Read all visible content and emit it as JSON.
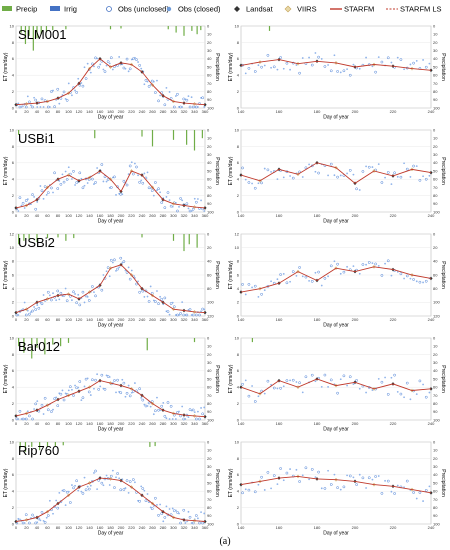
{
  "figure_label": "(a)",
  "legend": [
    {
      "label": "Precip",
      "kind": "bar",
      "color": "#70ad47"
    },
    {
      "label": "Irrig",
      "kind": "bar",
      "color": "#4472c4"
    },
    {
      "label": "Obs (unclosed)",
      "kind": "open-circle",
      "color": "#4472c4"
    },
    {
      "label": "Obs (closed)",
      "kind": "dot",
      "color": "#6f9bd8"
    },
    {
      "label": "Landsat",
      "kind": "diamond",
      "color": "#333333"
    },
    {
      "label": "VIIRS",
      "kind": "diamond-light",
      "color": "#c5a45a"
    },
    {
      "label": "STARFM",
      "kind": "line",
      "color": "#c0392b"
    },
    {
      "label": "STARFM LS",
      "kind": "dash",
      "color": "#c0392b"
    }
  ],
  "colors": {
    "starfm": "#c0392b",
    "obs": "#4a7fd6",
    "precip": "#70ad47",
    "landsat": "#333333",
    "viirs": "#c5a45a"
  },
  "axis_labels": {
    "x": "Day of year",
    "y": "ET (mm/day)",
    "y2": "Precipitation"
  },
  "chart_data": [
    {
      "type": "line",
      "site": "SLM001",
      "panel": "full-year",
      "xlim": [
        0,
        360
      ],
      "ylim": [
        0,
        10
      ],
      "y2lim": [
        0,
        100
      ],
      "xticks": [
        0,
        20,
        40,
        60,
        80,
        100,
        120,
        140,
        160,
        180,
        200,
        220,
        240,
        260,
        280,
        300,
        320,
        340,
        360
      ],
      "yticks": [
        0,
        2,
        4,
        6,
        8,
        10
      ],
      "y2ticks": [
        0,
        10,
        20,
        30,
        40,
        50,
        60,
        70,
        80,
        90,
        100
      ],
      "series": [
        {
          "name": "STARFM",
          "x": [
            0,
            20,
            40,
            60,
            80,
            100,
            120,
            140,
            160,
            180,
            200,
            220,
            240,
            260,
            280,
            300,
            320,
            340,
            360
          ],
          "y": [
            0.4,
            0.5,
            0.6,
            0.8,
            1.2,
            1.8,
            3.0,
            4.8,
            6.0,
            5.0,
            5.5,
            5.3,
            4.4,
            2.8,
            1.5,
            0.8,
            0.6,
            0.5,
            0.4
          ]
        }
      ],
      "precip": [
        [
          10,
          8
        ],
        [
          18,
          22
        ],
        [
          25,
          12
        ],
        [
          33,
          30
        ],
        [
          40,
          15
        ],
        [
          48,
          10
        ],
        [
          58,
          6
        ],
        [
          70,
          5
        ],
        [
          95,
          4
        ],
        [
          180,
          4
        ],
        [
          200,
          3
        ],
        [
          290,
          4
        ],
        [
          305,
          8
        ],
        [
          320,
          12
        ],
        [
          335,
          6
        ],
        [
          345,
          10
        ],
        [
          352,
          5
        ]
      ]
    },
    {
      "type": "line",
      "site": "SLM001",
      "panel": "summer",
      "xlim": [
        140,
        240
      ],
      "ylim": [
        0,
        10
      ],
      "y2lim": [
        0,
        100
      ],
      "xticks": [
        140,
        160,
        180,
        200,
        220,
        240
      ],
      "yticks": [
        0,
        2,
        4,
        6,
        8,
        10
      ],
      "y2ticks": [
        0,
        10,
        20,
        30,
        40,
        50,
        60,
        70,
        80,
        90,
        100
      ],
      "series": [
        {
          "name": "STARFM",
          "x": [
            140,
            150,
            160,
            170,
            180,
            190,
            200,
            210,
            220,
            230,
            240
          ],
          "y": [
            5.2,
            5.6,
            5.9,
            5.4,
            5.7,
            5.5,
            5.0,
            5.3,
            5.1,
            4.8,
            4.6
          ]
        }
      ],
      "precip": [
        [
          155,
          6
        ]
      ]
    },
    {
      "type": "line",
      "site": "USBi1",
      "panel": "full-year",
      "xlim": [
        0,
        360
      ],
      "ylim": [
        0,
        10
      ],
      "y2lim": [
        0,
        100
      ],
      "xticks": [
        0,
        20,
        40,
        60,
        80,
        100,
        120,
        140,
        160,
        180,
        200,
        220,
        240,
        260,
        280,
        300,
        320,
        340,
        360
      ],
      "yticks": [
        0,
        2,
        4,
        6,
        8,
        10
      ],
      "y2ticks": [
        0,
        10,
        20,
        30,
        40,
        50,
        60,
        70,
        80,
        90,
        100
      ],
      "series": [
        {
          "name": "STARFM",
          "x": [
            0,
            20,
            40,
            60,
            80,
            100,
            120,
            140,
            160,
            180,
            200,
            220,
            240,
            260,
            280,
            300,
            320,
            340,
            360
          ],
          "y": [
            0.5,
            0.8,
            1.5,
            3.0,
            4.0,
            4.5,
            3.8,
            4.2,
            5.0,
            4.0,
            2.5,
            5.0,
            4.5,
            3.0,
            1.5,
            1.0,
            0.8,
            0.6,
            0.5
          ]
        }
      ],
      "precip": [
        [
          5,
          6
        ],
        [
          150,
          10
        ],
        [
          240,
          8
        ],
        [
          260,
          20
        ],
        [
          300,
          12
        ],
        [
          325,
          18
        ],
        [
          340,
          25
        ],
        [
          355,
          10
        ]
      ]
    },
    {
      "type": "line",
      "site": "USBi1",
      "panel": "summer",
      "xlim": [
        140,
        240
      ],
      "ylim": [
        0,
        10
      ],
      "y2lim": [
        0,
        100
      ],
      "xticks": [
        140,
        160,
        180,
        200,
        220,
        240
      ],
      "yticks": [
        0,
        2,
        4,
        6,
        8,
        10
      ],
      "y2ticks": [
        0,
        10,
        20,
        30,
        40,
        50,
        60,
        70,
        80,
        90,
        100
      ],
      "series": [
        {
          "name": "STARFM",
          "x": [
            140,
            150,
            160,
            170,
            180,
            190,
            200,
            210,
            220,
            230,
            240
          ],
          "y": [
            4.5,
            3.8,
            5.2,
            4.6,
            6.0,
            5.4,
            3.5,
            5.0,
            4.4,
            5.2,
            4.8
          ]
        }
      ],
      "precip": []
    },
    {
      "type": "line",
      "site": "USBi2",
      "panel": "full-year",
      "xlim": [
        0,
        360
      ],
      "ylim": [
        0,
        12
      ],
      "y2lim": [
        0,
        120
      ],
      "xticks": [
        0,
        20,
        40,
        60,
        80,
        100,
        120,
        140,
        160,
        180,
        200,
        220,
        240,
        260,
        280,
        300,
        320,
        340,
        360
      ],
      "yticks": [
        0,
        2,
        4,
        6,
        8,
        10,
        12
      ],
      "y2ticks": [
        0,
        20,
        40,
        60,
        80,
        100,
        120
      ],
      "series": [
        {
          "name": "STARFM",
          "x": [
            0,
            20,
            40,
            60,
            80,
            100,
            120,
            140,
            160,
            180,
            200,
            220,
            240,
            260,
            280,
            300,
            320,
            340,
            360
          ],
          "y": [
            0.5,
            1.0,
            2.0,
            2.5,
            3.0,
            3.2,
            2.5,
            3.5,
            4.5,
            7.0,
            7.5,
            6.0,
            4.0,
            3.0,
            2.0,
            1.0,
            0.8,
            0.6,
            0.5
          ]
        }
      ],
      "precip": [
        [
          5,
          15
        ],
        [
          15,
          10
        ],
        [
          25,
          8
        ],
        [
          40,
          12
        ],
        [
          60,
          6
        ],
        [
          80,
          5
        ],
        [
          95,
          10
        ],
        [
          110,
          6
        ],
        [
          240,
          5
        ],
        [
          300,
          10
        ],
        [
          320,
          25
        ],
        [
          330,
          15
        ],
        [
          345,
          20
        ]
      ]
    },
    {
      "type": "line",
      "site": "USBi2",
      "panel": "summer",
      "xlim": [
        140,
        240
      ],
      "ylim": [
        0,
        12
      ],
      "y2lim": [
        0,
        120
      ],
      "xticks": [
        140,
        160,
        180,
        200,
        220,
        240
      ],
      "yticks": [
        0,
        2,
        4,
        6,
        8,
        10,
        12
      ],
      "y2ticks": [
        0,
        20,
        40,
        60,
        80,
        100,
        120
      ],
      "series": [
        {
          "name": "STARFM",
          "x": [
            140,
            150,
            160,
            170,
            180,
            190,
            200,
            210,
            220,
            230,
            240
          ],
          "y": [
            3.5,
            4.0,
            4.8,
            6.5,
            5.2,
            7.0,
            6.5,
            7.2,
            6.8,
            6.0,
            5.5
          ]
        }
      ],
      "precip": []
    },
    {
      "type": "line",
      "site": "Bar012",
      "panel": "full-year",
      "xlim": [
        0,
        360
      ],
      "ylim": [
        0,
        10
      ],
      "y2lim": [
        0,
        100
      ],
      "xticks": [
        0,
        20,
        40,
        60,
        80,
        100,
        120,
        140,
        160,
        180,
        200,
        220,
        240,
        260,
        280,
        300,
        320,
        340,
        360
      ],
      "yticks": [
        0,
        2,
        4,
        6,
        8,
        10
      ],
      "y2ticks": [
        0,
        10,
        20,
        30,
        40,
        50,
        60,
        70,
        80,
        90,
        100
      ],
      "series": [
        {
          "name": "STARFM",
          "x": [
            0,
            20,
            40,
            60,
            80,
            100,
            120,
            140,
            160,
            180,
            200,
            220,
            240,
            260,
            280,
            300,
            320,
            340,
            360
          ],
          "y": [
            0.5,
            0.8,
            1.2,
            1.8,
            2.5,
            3.0,
            3.5,
            4.0,
            4.8,
            4.5,
            4.2,
            3.8,
            3.0,
            2.0,
            1.2,
            0.8,
            0.6,
            0.5,
            0.4
          ]
        }
      ],
      "precip": [
        [
          5,
          10
        ],
        [
          15,
          18
        ],
        [
          30,
          25
        ],
        [
          40,
          12
        ],
        [
          55,
          20
        ],
        [
          70,
          8
        ],
        [
          85,
          10
        ],
        [
          100,
          6
        ],
        [
          250,
          15
        ],
        [
          340,
          5
        ]
      ]
    },
    {
      "type": "line",
      "site": "Bar012",
      "panel": "summer",
      "xlim": [
        140,
        240
      ],
      "ylim": [
        0,
        10
      ],
      "y2lim": [
        0,
        100
      ],
      "xticks": [
        140,
        160,
        180,
        200,
        220,
        240
      ],
      "yticks": [
        0,
        2,
        4,
        6,
        8,
        10
      ],
      "y2ticks": [
        0,
        10,
        20,
        30,
        40,
        50,
        60,
        70,
        80,
        90,
        100
      ],
      "series": [
        {
          "name": "STARFM",
          "x": [
            140,
            150,
            160,
            170,
            180,
            190,
            200,
            210,
            220,
            230,
            240
          ],
          "y": [
            4.0,
            3.2,
            4.8,
            4.0,
            5.0,
            4.2,
            4.6,
            3.8,
            4.4,
            3.6,
            3.8
          ]
        }
      ],
      "precip": [
        [
          146,
          5
        ]
      ]
    },
    {
      "type": "line",
      "site": "Rip760",
      "panel": "full-year",
      "xlim": [
        0,
        360
      ],
      "ylim": [
        0,
        10
      ],
      "y2lim": [
        0,
        100
      ],
      "xticks": [
        0,
        20,
        40,
        60,
        80,
        100,
        120,
        140,
        160,
        180,
        200,
        220,
        240,
        260,
        280,
        300,
        320,
        340,
        360
      ],
      "yticks": [
        0,
        2,
        4,
        6,
        8,
        10
      ],
      "y2ticks": [
        0,
        10,
        20,
        30,
        40,
        50,
        60,
        70,
        80,
        90,
        100
      ],
      "series": [
        {
          "name": "STARFM",
          "x": [
            0,
            20,
            40,
            60,
            80,
            100,
            120,
            140,
            160,
            180,
            200,
            220,
            240,
            260,
            280,
            300,
            320,
            340,
            360
          ],
          "y": [
            0.3,
            0.5,
            0.8,
            1.5,
            2.5,
            3.5,
            4.5,
            5.0,
            5.6,
            5.5,
            5.3,
            4.5,
            3.5,
            2.5,
            1.5,
            0.8,
            0.5,
            0.4,
            0.3
          ]
        }
      ],
      "precip": [
        [
          8,
          8
        ],
        [
          18,
          12
        ],
        [
          30,
          6
        ],
        [
          45,
          10
        ],
        [
          60,
          6
        ],
        [
          75,
          5
        ],
        [
          90,
          4
        ],
        [
          255,
          6
        ],
        [
          265,
          5
        ]
      ]
    },
    {
      "type": "line",
      "site": "Rip760",
      "panel": "summer",
      "xlim": [
        140,
        240
      ],
      "ylim": [
        0,
        10
      ],
      "y2lim": [
        0,
        100
      ],
      "xticks": [
        140,
        160,
        180,
        200,
        220,
        240
      ],
      "yticks": [
        0,
        2,
        4,
        6,
        8,
        10
      ],
      "y2ticks": [
        0,
        10,
        20,
        30,
        40,
        50,
        60,
        70,
        80,
        90,
        100
      ],
      "series": [
        {
          "name": "STARFM",
          "x": [
            140,
            150,
            160,
            170,
            180,
            190,
            200,
            210,
            220,
            230,
            240
          ],
          "y": [
            4.8,
            5.2,
            5.6,
            5.8,
            5.5,
            5.4,
            5.2,
            4.8,
            4.6,
            4.2,
            3.8
          ]
        }
      ],
      "precip": []
    }
  ]
}
